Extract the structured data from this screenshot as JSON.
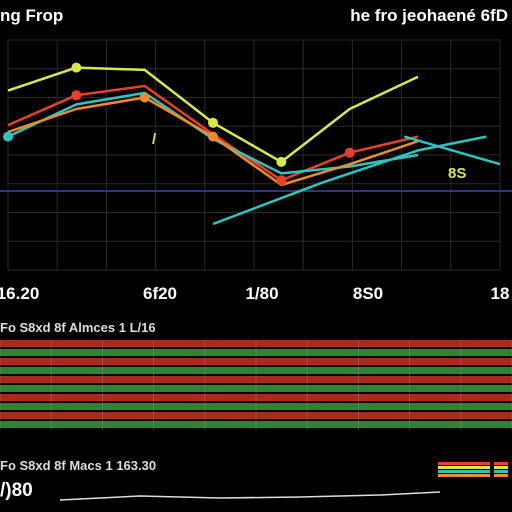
{
  "header": {
    "title_left": "ng Frop",
    "title_right": "he fro jeohaené 6fD"
  },
  "colors": {
    "background": "#000000",
    "yellow": "#d8e84a",
    "red": "#e8402a",
    "teal": "#2ec4c0",
    "orange": "#f08a2a",
    "grid": "#2a2a2a"
  },
  "chart_data": {
    "type": "line",
    "title": "",
    "xlabel": "",
    "ylabel": "",
    "x_ticks": [
      "16.20",
      "6f20",
      "1/80",
      "8S0",
      "18"
    ],
    "annotations": [
      "/",
      "8S"
    ],
    "series": [
      {
        "color": "yellow",
        "points": [
          [
            0,
            0.78
          ],
          [
            1,
            0.88
          ],
          [
            2,
            0.87
          ],
          [
            3,
            0.64
          ],
          [
            4,
            0.47
          ],
          [
            5,
            0.7
          ],
          [
            6,
            0.84
          ]
        ]
      },
      {
        "color": "red",
        "points": [
          [
            0,
            0.63
          ],
          [
            1,
            0.76
          ],
          [
            2,
            0.8
          ],
          [
            3,
            0.59
          ],
          [
            4,
            0.39
          ],
          [
            5,
            0.51
          ],
          [
            6,
            0.58
          ]
        ]
      },
      {
        "color": "teal",
        "points": [
          [
            0,
            0.58
          ],
          [
            1,
            0.72
          ],
          [
            2,
            0.77
          ],
          [
            3,
            0.57
          ],
          [
            4,
            0.42
          ],
          [
            5,
            0.45
          ],
          [
            6,
            0.5
          ]
        ]
      },
      {
        "color": "orange",
        "points": [
          [
            0,
            0.6
          ],
          [
            1,
            0.7
          ],
          [
            2,
            0.75
          ],
          [
            3,
            0.58
          ],
          [
            4,
            0.37
          ],
          [
            5,
            0.46
          ],
          [
            6,
            0.56
          ]
        ]
      },
      {
        "color": "teal",
        "points": [
          [
            3.0,
            0.2
          ],
          [
            4.6,
            0.38
          ],
          [
            6.0,
            0.52
          ],
          [
            7.0,
            0.58
          ]
        ]
      },
      {
        "color": "teal",
        "points": [
          [
            5.8,
            0.58
          ],
          [
            7.2,
            0.46
          ]
        ]
      }
    ],
    "markers": [
      {
        "series": 0,
        "index": 1
      },
      {
        "series": 0,
        "index": 3
      },
      {
        "series": 0,
        "index": 4
      },
      {
        "series": 1,
        "index": 1
      },
      {
        "series": 1,
        "index": 4
      },
      {
        "series": 1,
        "index": 5
      },
      {
        "series": 2,
        "index": 0
      },
      {
        "series": 3,
        "index": 2
      },
      {
        "series": 3,
        "index": 3
      }
    ],
    "bands": {
      "label": "Fo S8xd 8f Almces 1 L/16",
      "colors": [
        "red",
        "green",
        "red",
        "green",
        "red",
        "green",
        "red",
        "green",
        "red",
        "green"
      ]
    },
    "strip": {
      "label": "Fo S8xd 8f Macs 1 163.30",
      "value": "/)80"
    }
  }
}
